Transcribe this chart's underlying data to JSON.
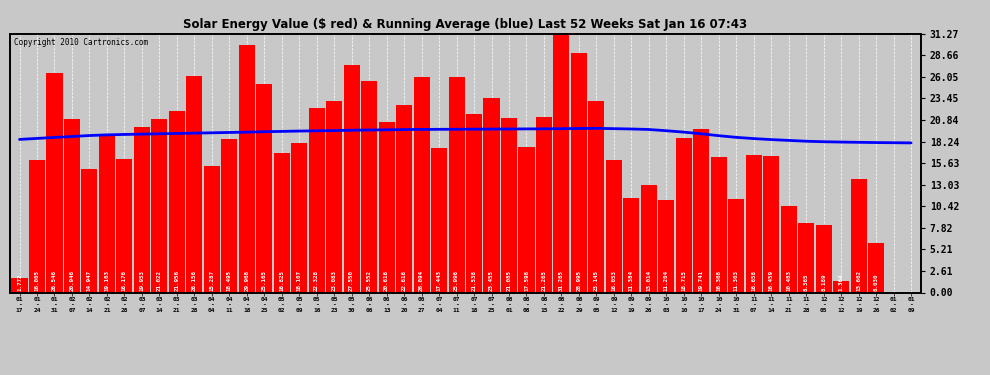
{
  "title": "Solar Energy Value ($ red) & Running Average (blue) Last 52 Weeks Sat Jan 16 07:43",
  "copyright": "Copyright 2010 Cartronics.com",
  "bar_color": "#ff0000",
  "line_color": "#0000ff",
  "background_color": "#d0d0d0",
  "plot_bg_color": "#d0d0d0",
  "grid_color": "#ffffff",
  "ylim": [
    0.0,
    31.27
  ],
  "yticks": [
    0.0,
    2.61,
    5.21,
    7.82,
    10.42,
    13.03,
    15.63,
    18.24,
    20.84,
    23.45,
    26.05,
    28.66,
    31.27
  ],
  "dates": [
    "01-17",
    "01-24",
    "01-31",
    "02-07",
    "02-14",
    "02-21",
    "02-28",
    "03-07",
    "03-14",
    "03-21",
    "03-28",
    "04-04",
    "04-11",
    "04-18",
    "04-25",
    "05-02",
    "05-09",
    "05-16",
    "05-23",
    "05-30",
    "06-06",
    "06-13",
    "06-20",
    "06-27",
    "07-04",
    "07-11",
    "07-18",
    "07-25",
    "08-01",
    "08-08",
    "08-15",
    "08-22",
    "08-29",
    "09-05",
    "09-12",
    "09-19",
    "09-26",
    "10-03",
    "10-10",
    "10-17",
    "10-24",
    "10-31",
    "11-07",
    "11-14",
    "11-21",
    "11-28",
    "12-05",
    "12-12",
    "12-19",
    "12-26",
    "01-02",
    "01-09"
  ],
  "values": [
    1.772,
    16.005,
    26.546,
    20.946,
    14.947,
    19.163,
    16.176,
    19.953,
    21.022,
    21.956,
    26.156,
    15.287,
    18.495,
    29.968,
    25.165,
    16.825,
    18.107,
    22.328,
    23.083,
    27.55,
    25.552,
    20.616,
    22.616,
    26.094,
    17.443,
    25.996,
    21.538,
    23.455,
    21.085,
    17.598,
    21.265,
    31.265,
    28.995,
    23.145,
    16.053,
    11.384,
    13.014,
    11.204,
    18.715,
    19.741,
    16.368,
    11.303,
    16.658,
    16.459,
    10.483,
    8.365,
    8.189,
    1.364,
    13.662,
    6.03,
    0.0,
    0.0
  ],
  "avg": [
    18.5,
    18.62,
    18.74,
    18.85,
    18.97,
    19.05,
    19.1,
    19.14,
    19.18,
    19.22,
    19.26,
    19.3,
    19.34,
    19.38,
    19.43,
    19.47,
    19.51,
    19.54,
    19.57,
    19.61,
    19.64,
    19.66,
    19.69,
    19.71,
    19.72,
    19.73,
    19.74,
    19.75,
    19.76,
    19.77,
    19.78,
    19.8,
    19.82,
    19.84,
    19.8,
    19.76,
    19.7,
    19.55,
    19.38,
    19.18,
    18.95,
    18.75,
    18.6,
    18.48,
    18.38,
    18.28,
    18.22,
    18.18,
    18.15,
    18.12,
    18.1,
    18.08
  ]
}
